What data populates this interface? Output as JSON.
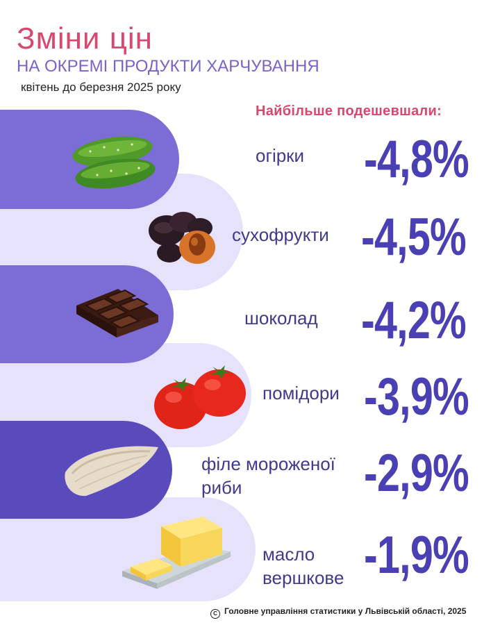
{
  "header": {
    "title": "Зміни цін",
    "subtitle": "НА ОКРЕМІ ПРОДУКТИ ХАРЧУВАННЯ",
    "period": "квітень до березня 2025 року"
  },
  "section_heading": "Найбільше подешевшали:",
  "items": [
    {
      "label": "огірки",
      "value": "-4,8%",
      "icon": "cucumber-icon"
    },
    {
      "label": "сухофрукти",
      "value": "-4,5%",
      "icon": "dried-fruit-icon"
    },
    {
      "label": "шоколад",
      "value": "-4,2%",
      "icon": "chocolate-icon"
    },
    {
      "label": "помідори",
      "value": "-3,9%",
      "icon": "tomato-icon"
    },
    {
      "label_line1": "філе мороженої",
      "label_line2": "риби",
      "value": "-2,9%",
      "icon": "fish-fillet-icon"
    },
    {
      "label_line1": "масло",
      "label_line2": "вершкове",
      "value": "-1,9%",
      "icon": "butter-icon"
    }
  ],
  "footer": {
    "symbol": "C",
    "text": "Головне управління статистики у Львівській області, 2025"
  },
  "colors": {
    "title": "#d9466e",
    "accent": "#7a62c9",
    "value": "#4b3fb4",
    "band_dark": "#7b6cd6",
    "band_light": "#e7e2fb",
    "band_darkest": "#5a4bbd"
  }
}
